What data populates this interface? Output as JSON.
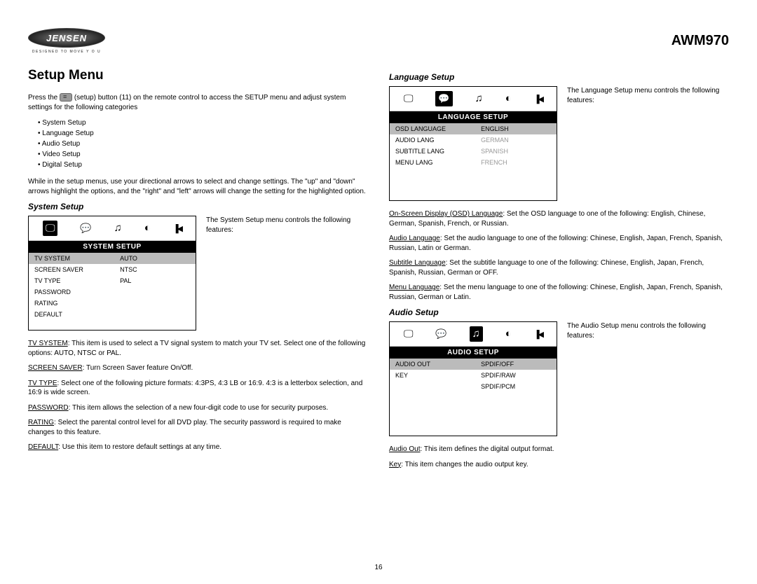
{
  "header": {
    "logo_text": "JENSEN",
    "tagline": "DESIGNED TO MOVE  Y O U",
    "model": "AWM970"
  },
  "left": {
    "title": "Setup Menu",
    "intro_pre": "Press the ",
    "intro_post": " (setup) button (11) on the remote control to access the SETUP menu and adjust system settings for the following categories",
    "categories": [
      "System Setup",
      "Language Setup",
      "Audio Setup",
      "Video Setup",
      "Digital Setup"
    ],
    "nav_text": "While in the setup menus, use your directional arrows to select and change settings. The \"up\" and \"down\" arrows highlight the options, and the \"right\" and \"left\" arrows will change the setting for the highlighted option.",
    "system": {
      "heading": "System Setup",
      "desc": "The System Setup menu controls the following features:",
      "menu_title": "SYSTEM SETUP",
      "rows": [
        {
          "l": "TV SYSTEM",
          "r": "AUTO",
          "hl": true
        },
        {
          "l": "SCREEN SAVER",
          "r": "NTSC"
        },
        {
          "l": "TV TYPE",
          "r": "PAL"
        },
        {
          "l": "PASSWORD",
          "r": ""
        },
        {
          "l": "RATING",
          "r": ""
        },
        {
          "l": "DEFAULT",
          "r": ""
        }
      ],
      "items": [
        {
          "label": "TV SYSTEM",
          "text": ": This item is used to select a TV signal system to match your TV set. Select one of the following options: AUTO, NTSC or PAL."
        },
        {
          "label": "SCREEN SAVER",
          "text": ": Turn Screen Saver feature On/Off."
        },
        {
          "label": "TV TYPE",
          "text": ": Select one of the following picture formats: 4:3PS, 4:3 LB or 16:9. 4:3 is a letterbox selection, and 16:9 is wide screen."
        },
        {
          "label": "PASSWORD",
          "text": ": This item allows the selection of a new four-digit code to use for security purposes."
        },
        {
          "label": "RATING",
          "text": ": Select the parental control level for all DVD play. The security password is required to make changes to this feature."
        },
        {
          "label": "DEFAULT",
          "text": ": Use this item to restore default settings at any time."
        }
      ]
    }
  },
  "right": {
    "language": {
      "heading": "Language Setup",
      "desc": "The Language Setup menu controls the following features:",
      "menu_title": "LANGUAGE SETUP",
      "rows": [
        {
          "l": "OSD LANGUAGE",
          "r": "ENGLISH",
          "hl": true
        },
        {
          "l": "AUDIO LANG",
          "r": "GERMAN",
          "dim": true
        },
        {
          "l": "SUBTITLE LANG",
          "r": "SPANISH",
          "dim": true
        },
        {
          "l": "MENU LANG",
          "r": "FRENCH",
          "dim": true
        }
      ],
      "items": [
        {
          "label": "On-Screen Display (OSD) Language",
          "text": ": Set the OSD language to one of the following: English, Chinese, German, Spanish, French, or Russian."
        },
        {
          "label": "Audio Language",
          "text": ": Set the audio language to one of the following: Chinese, English, Japan, French, Spanish, Russian, Latin or German."
        },
        {
          "label": "Subtitle Language",
          "text": ": Set the subtitle language to one of the following: Chinese, English, Japan, French, Spanish, Russian, German or OFF."
        },
        {
          "label": "Menu Language",
          "text": ": Set the menu language to one of the following: Chinese, English, Japan, French, Spanish, Russian, German or Latin."
        }
      ]
    },
    "audio": {
      "heading": "Audio Setup",
      "desc": "The Audio Setup menu controls the following features:",
      "menu_title": "AUDIO SETUP",
      "rows": [
        {
          "l": "AUDIO OUT",
          "r": "SPDIF/OFF",
          "hl": true
        },
        {
          "l": "KEY",
          "r": "SPDIF/RAW"
        },
        {
          "l": "",
          "r": "SPDIF/PCM"
        }
      ],
      "items": [
        {
          "label": "Audio Out",
          "text": ": This item defines the digital output format."
        },
        {
          "label": "Key",
          "text": ": This item changes the audio output key."
        }
      ]
    }
  },
  "page_number": "16"
}
